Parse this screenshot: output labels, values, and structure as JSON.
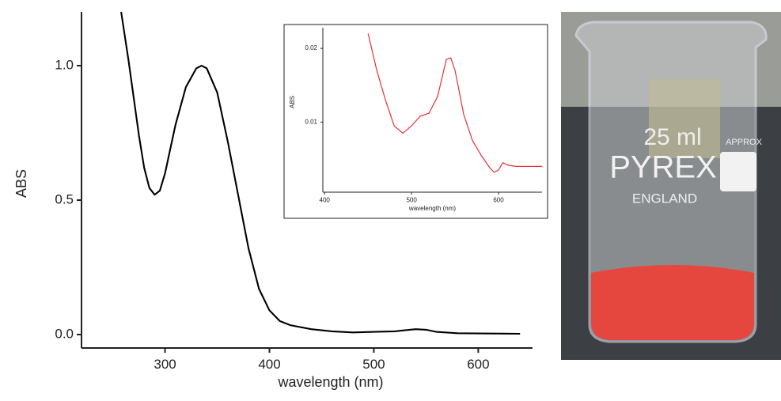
{
  "chart_data": [
    {
      "type": "line",
      "xlabel": "wavelength (nm)",
      "ylabel": "ABS",
      "color": "#000000",
      "xlim": [
        220,
        652
      ],
      "ylim": [
        -0.05,
        1.2
      ],
      "xticks": [
        300,
        400,
        500,
        600
      ],
      "yticks": [
        {
          "value": 0,
          "label": "0.0"
        },
        0.5,
        {
          "value": 1,
          "label": "1.0"
        }
      ],
      "x": [
        258,
        265,
        270,
        275,
        280,
        285,
        290,
        295,
        300,
        310,
        320,
        330,
        335,
        340,
        350,
        360,
        370,
        380,
        390,
        400,
        410,
        420,
        440,
        460,
        480,
        500,
        520,
        540,
        550,
        560,
        580,
        600,
        640
      ],
      "values": [
        1.2,
        1.02,
        0.88,
        0.74,
        0.62,
        0.545,
        0.52,
        0.535,
        0.6,
        0.78,
        0.92,
        0.99,
        1.0,
        0.99,
        0.9,
        0.72,
        0.52,
        0.32,
        0.17,
        0.09,
        0.05,
        0.035,
        0.02,
        0.012,
        0.008,
        0.01,
        0.012,
        0.02,
        0.018,
        0.01,
        0.005,
        0.004,
        0.003
      ]
    },
    {
      "type": "line",
      "xlabel": "wavelength (nm)",
      "ylabel": "ABS",
      "color": "#e8303a",
      "xlim": [
        398,
        650
      ],
      "ylim": [
        0.0005,
        0.0228
      ],
      "xticks": [
        400,
        500,
        600
      ],
      "yticks": [
        0.01,
        0.02
      ],
      "x": [
        450,
        460,
        470,
        480,
        490,
        500,
        510,
        520,
        530,
        540,
        545,
        550,
        560,
        570,
        580,
        590,
        595,
        600,
        605,
        610,
        620,
        650
      ],
      "values": [
        0.022,
        0.017,
        0.013,
        0.0095,
        0.0085,
        0.0095,
        0.0108,
        0.0112,
        0.0135,
        0.0185,
        0.0187,
        0.017,
        0.011,
        0.0075,
        0.0055,
        0.0038,
        0.0032,
        0.0035,
        0.0045,
        0.0042,
        0.004,
        0.004
      ]
    }
  ],
  "photo": {
    "volume": "25 ml",
    "brand": "PYREX",
    "origin": "ENGLAND",
    "note": "APPROX"
  }
}
